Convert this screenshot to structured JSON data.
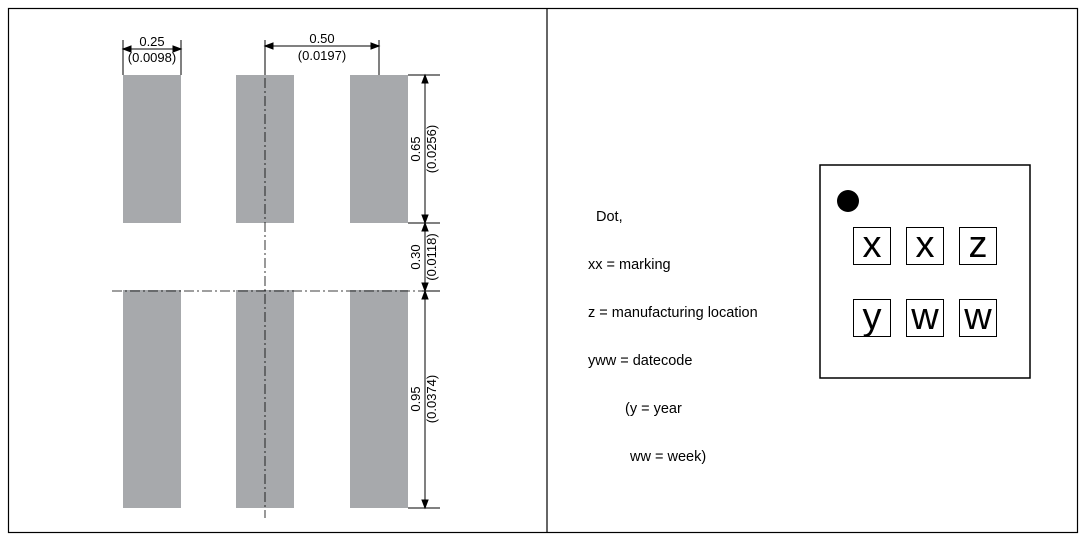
{
  "footprint": {
    "pad_width": {
      "mm": "0.25",
      "in": "(0.0098)"
    },
    "pitch": {
      "mm": "0.50",
      "in": "(0.0197)"
    },
    "top_pad_length": {
      "mm": "0.65",
      "in": "(0.0256)"
    },
    "gap": {
      "mm": "0.30",
      "in": "(0.0118)"
    },
    "bottom_pad_length": {
      "mm": "0.95",
      "in": "(0.0374)"
    },
    "pad_color": "#a7a9ac"
  },
  "legend": {
    "line1": "Dot,",
    "line2": "xx = marking",
    "line3": "z = manufacturing location",
    "line4": "yww = datecode",
    "line5": "(y = year",
    "line6": "ww = week)"
  },
  "marking": {
    "row1": [
      "x",
      "x",
      "z"
    ],
    "row2": [
      "y",
      "w",
      "w"
    ]
  }
}
